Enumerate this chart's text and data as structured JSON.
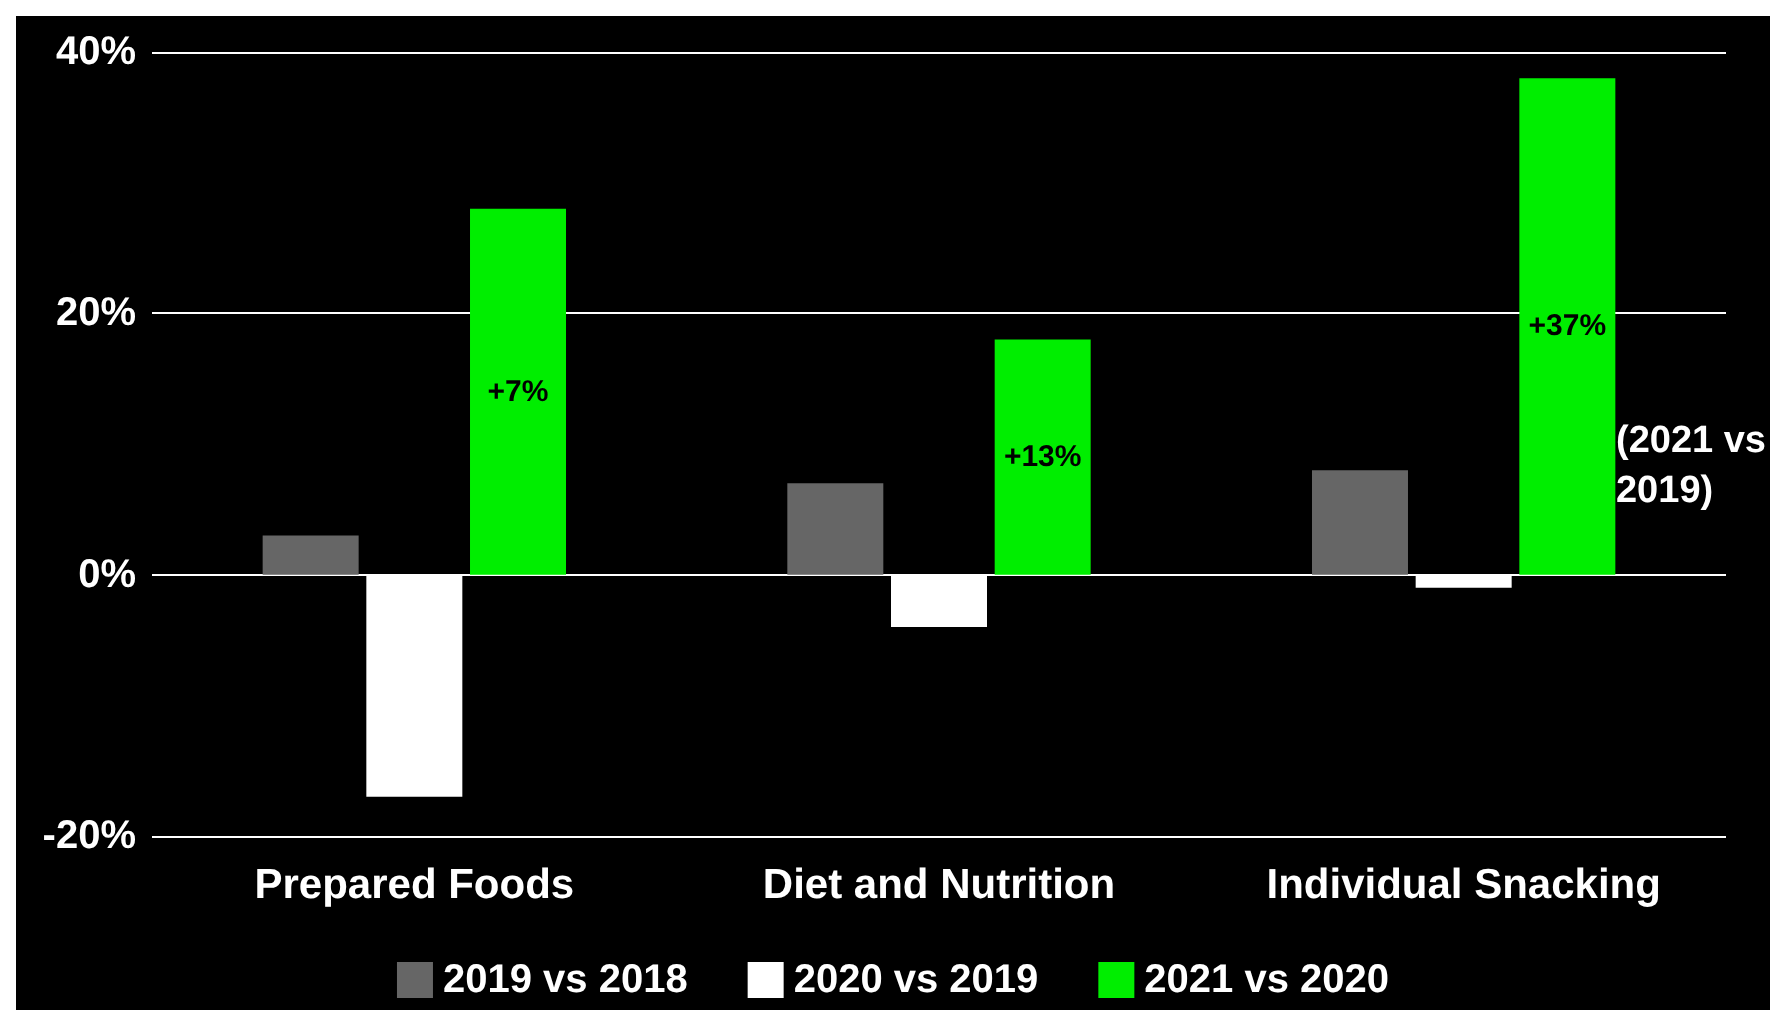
{
  "chart_data": {
    "type": "bar",
    "categories": [
      "Prepared Foods",
      "Diet and Nutrition",
      "Individual Snacking"
    ],
    "series": [
      {
        "name": "2019 vs 2018",
        "color": "#666666",
        "values": [
          3,
          7,
          8
        ]
      },
      {
        "name": "2020 vs 2019",
        "color": "#ffffff",
        "values": [
          -17,
          -4,
          -1
        ]
      },
      {
        "name": "2021 vs 2020",
        "color": "#00ee00",
        "values": [
          28,
          18,
          38
        ]
      }
    ],
    "ylim": [
      -20,
      40
    ],
    "yticks": [
      {
        "value": -20,
        "label": "-20%"
      },
      {
        "value": 0,
        "label": "0%"
      },
      {
        "value": 20,
        "label": "20%"
      },
      {
        "value": 40,
        "label": "40%"
      }
    ],
    "grid": "y",
    "legend": "bottom",
    "annotations": [
      "+7%",
      "+13%",
      "+37%",
      "(2021 vs\n2019)"
    ]
  }
}
